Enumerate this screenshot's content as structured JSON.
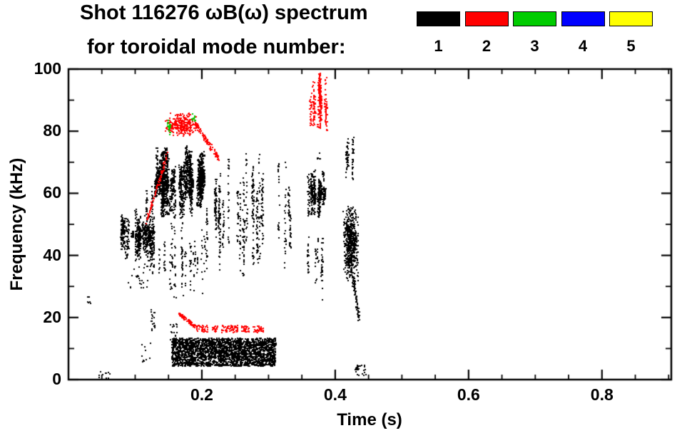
{
  "chart_data": {
    "type": "scatter",
    "title": "Shot 116276 ωB(ω) spectrum",
    "subtitle": "for toroidal mode number:",
    "xlabel": "Time (s)",
    "ylabel": "Frequency (kHz)",
    "xlim": [
      0,
      0.904
    ],
    "ylim": [
      0,
      100
    ],
    "xticks": [
      0.2,
      0.4,
      0.6,
      0.8
    ],
    "xtick_labels": [
      "0.2",
      "0.4",
      "0.6",
      "0.8"
    ],
    "x_minor_step": 0.05,
    "yticks": [
      0,
      20,
      40,
      60,
      80,
      100
    ],
    "ytick_labels": [
      "0",
      "20",
      "40",
      "60",
      "80",
      "100"
    ],
    "y_minor_step": 10,
    "axis_color": "#000000",
    "background": "#ffffff",
    "legend": [
      {
        "label": "1",
        "color": "#000000"
      },
      {
        "label": "2",
        "color": "#ff0000"
      },
      {
        "label": "3",
        "color": "#00cc00"
      },
      {
        "label": "4",
        "color": "#0000ff"
      },
      {
        "label": "5",
        "color": "#ffff00"
      }
    ],
    "series": [
      {
        "name": "toroidal mode n=1",
        "color": "#000000",
        "clusters": [
          {
            "kind": "dots",
            "t": [
              0.027,
              0.034
            ],
            "f": [
              24,
              27
            ],
            "n": 6,
            "s": 2
          },
          {
            "kind": "dots",
            "t": [
              0.044,
              0.064
            ],
            "f": [
              0.5,
              3
            ],
            "n": 10,
            "s": 2
          },
          {
            "kind": "streaks",
            "t": [
              0.076,
              0.127
            ],
            "f": [
              38,
              56
            ],
            "streaks": 26,
            "pts": 26,
            "jt": 0.0035
          },
          {
            "kind": "dots",
            "t": [
              0.088,
              0.118
            ],
            "f": [
              29,
              38
            ],
            "n": 25,
            "s": 2
          },
          {
            "kind": "streaks",
            "t": [
              0.115,
              0.127
            ],
            "f": [
              28,
              68
            ],
            "streaks": 4,
            "pts": 34,
            "jt": 0.002
          },
          {
            "kind": "dots",
            "t": [
              0.122,
              0.13
            ],
            "f": [
              14,
              23
            ],
            "n": 18,
            "s": 2
          },
          {
            "kind": "dots",
            "t": [
              0.108,
              0.125
            ],
            "f": [
              6,
              12
            ],
            "n": 10,
            "s": 2
          },
          {
            "kind": "streaks",
            "t": [
              0.128,
              0.205
            ],
            "f": [
              52,
              76
            ],
            "streaks": 46,
            "pts": 42,
            "jt": 0.0035
          },
          {
            "kind": "streaks",
            "t": [
              0.135,
              0.205
            ],
            "f": [
              24,
              52
            ],
            "streaks": 20,
            "pts": 9,
            "jt": 0.002
          },
          {
            "kind": "streaks",
            "t": [
              0.205,
              0.335
            ],
            "f": [
              33,
              74
            ],
            "streaks": 26,
            "pts": 24,
            "jt": 0.002
          },
          {
            "kind": "band",
            "t": [
              0.154,
              0.31
            ],
            "f": [
              4.5,
              13.5
            ],
            "n": 2600,
            "s": 2
          },
          {
            "kind": "dots",
            "t": [
              0.152,
              0.162
            ],
            "f": [
              13,
              19
            ],
            "n": 15,
            "s": 2
          },
          {
            "kind": "streaks",
            "t": [
              0.352,
              0.384
            ],
            "f": [
              52,
              68
            ],
            "streaks": 16,
            "pts": 34,
            "jt": 0.003
          },
          {
            "kind": "streaks",
            "t": [
              0.356,
              0.38
            ],
            "f": [
              24,
              52
            ],
            "streaks": 7,
            "pts": 11,
            "jt": 0.002
          },
          {
            "kind": "dots",
            "t": [
              0.372,
              0.378
            ],
            "f": [
              70,
              74
            ],
            "n": 6,
            "s": 2
          },
          {
            "kind": "streaks",
            "t": [
              0.416,
              0.427
            ],
            "f": [
              64,
              79
            ],
            "streaks": 5,
            "pts": 16,
            "jt": 0.002
          },
          {
            "kind": "blob",
            "t": [
              0.411,
              0.434
            ],
            "f": [
              32,
              56
            ],
            "n": 620,
            "s": 2
          },
          {
            "kind": "diag",
            "from": [
              0.425,
              34
            ],
            "to": [
              0.435,
              19
            ],
            "n": 70,
            "jt": 0.004,
            "jf": 2.5
          },
          {
            "kind": "dots",
            "t": [
              0.427,
              0.446
            ],
            "f": [
              1.5,
              5
            ],
            "n": 28,
            "s": 2
          }
        ]
      },
      {
        "name": "toroidal mode n=2",
        "color": "#ff0000",
        "clusters": [
          {
            "kind": "diag",
            "from": [
              0.116,
              51
            ],
            "to": [
              0.147,
              73
            ],
            "n": 90,
            "jt": 0.0025,
            "jf": 2.0,
            "s": 2
          },
          {
            "kind": "blob",
            "t": [
              0.144,
              0.192
            ],
            "f": [
              78.5,
              86
            ],
            "n": 300,
            "s": 2
          },
          {
            "kind": "diag",
            "from": [
              0.19,
              82.5
            ],
            "to": [
              0.224,
              71.5
            ],
            "n": 110,
            "jt": 0.003,
            "jf": 1.8,
            "s": 2
          },
          {
            "kind": "streaks",
            "t": [
              0.362,
              0.386
            ],
            "f": [
              80,
              100
            ],
            "streaks": 12,
            "pts": 26,
            "jt": 0.003
          },
          {
            "kind": "diag",
            "from": [
              0.165,
              21.5
            ],
            "to": [
              0.189,
              17.2
            ],
            "n": 80,
            "jt": 0.002,
            "jf": 1.2,
            "s": 2
          },
          {
            "kind": "segments",
            "f": [
              15.4,
              17.6
            ],
            "ppt": 2400,
            "s": 2,
            "segs": [
              [
                0.19,
                0.208
              ],
              [
                0.214,
                0.223
              ],
              [
                0.229,
                0.253
              ],
              [
                0.259,
                0.27
              ],
              [
                0.276,
                0.292
              ]
            ]
          }
        ]
      },
      {
        "name": "toroidal mode n=3",
        "color": "#00cc00",
        "clusters": [
          {
            "kind": "streaks",
            "t": [
              0.147,
              0.154
            ],
            "f": [
              79,
              84.5
            ],
            "streaks": 3,
            "pts": 8,
            "jt": 0.0015,
            "s": 2
          },
          {
            "kind": "dots",
            "t": [
              0.183,
              0.19
            ],
            "f": [
              83,
              86
            ],
            "n": 9,
            "s": 2
          }
        ]
      },
      {
        "name": "toroidal mode n=4",
        "color": "#0000ff",
        "clusters": []
      },
      {
        "name": "toroidal mode n=5",
        "color": "#ffff00",
        "clusters": []
      }
    ]
  }
}
